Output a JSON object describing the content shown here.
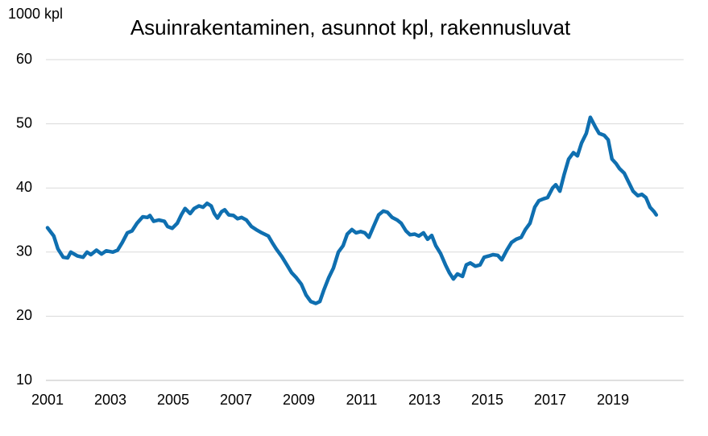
{
  "chart_data": {
    "type": "line",
    "title": "Asuinrakentaminen, asunnot kpl, rakennusluvat",
    "y_label": "1000 kpl",
    "color": "#0f6fb0",
    "grid": true,
    "xlim": [
      2001,
      2021.25
    ],
    "xticks": [
      2001,
      2003,
      2005,
      2007,
      2009,
      2011,
      2013,
      2015,
      2017,
      2019
    ],
    "ylim": [
      10,
      60
    ],
    "yticks": [
      10,
      20,
      30,
      40,
      50,
      60
    ],
    "x": [
      2001.0,
      2001.2,
      2001.33,
      2001.5,
      2001.64,
      2001.74,
      2001.95,
      2002.13,
      2002.26,
      2002.38,
      2002.56,
      2002.72,
      2002.87,
      2003.08,
      2003.23,
      2003.38,
      2003.54,
      2003.69,
      2003.85,
      2004.03,
      2004.18,
      2004.26,
      2004.38,
      2004.54,
      2004.72,
      2004.82,
      2004.97,
      2005.13,
      2005.26,
      2005.38,
      2005.54,
      2005.67,
      2005.82,
      2005.95,
      2006.08,
      2006.21,
      2006.31,
      2006.41,
      2006.54,
      2006.64,
      2006.77,
      2006.92,
      2007.05,
      2007.18,
      2007.33,
      2007.49,
      2007.64,
      2007.82,
      2008.03,
      2008.15,
      2008.28,
      2008.46,
      2008.62,
      2008.77,
      2008.92,
      2009.08,
      2009.23,
      2009.38,
      2009.54,
      2009.67,
      2009.79,
      2009.95,
      2010.1,
      2010.26,
      2010.41,
      2010.54,
      2010.69,
      2010.82,
      2010.97,
      2011.1,
      2011.23,
      2011.38,
      2011.54,
      2011.69,
      2011.82,
      2011.97,
      2012.13,
      2012.26,
      2012.41,
      2012.54,
      2012.69,
      2012.82,
      2012.97,
      2013.1,
      2013.23,
      2013.36,
      2013.51,
      2013.67,
      2013.79,
      2013.92,
      2014.05,
      2014.21,
      2014.33,
      2014.46,
      2014.62,
      2014.77,
      2014.9,
      2015.05,
      2015.18,
      2015.33,
      2015.46,
      2015.62,
      2015.77,
      2015.92,
      2016.08,
      2016.21,
      2016.36,
      2016.51,
      2016.64,
      2016.79,
      2016.92,
      2017.08,
      2017.18,
      2017.31,
      2017.44,
      2017.59,
      2017.74,
      2017.87,
      2018.0,
      2018.15,
      2018.28,
      2018.44,
      2018.56,
      2018.72,
      2018.85,
      2018.97,
      2019.1,
      2019.21,
      2019.36,
      2019.49,
      2019.64,
      2019.79,
      2019.92,
      2020.05,
      2020.18,
      2020.31,
      2020.38
    ],
    "values": [
      33.8,
      32.5,
      30.5,
      29.2,
      29.1,
      30,
      29.4,
      29.2,
      30,
      29.6,
      30.3,
      29.7,
      30.2,
      30,
      30.3,
      31.5,
      33,
      33.3,
      34.5,
      35.5,
      35.4,
      35.7,
      34.8,
      35,
      34.8,
      34,
      33.7,
      34.5,
      35.8,
      36.8,
      36,
      36.8,
      37.2,
      37,
      37.6,
      37.2,
      36,
      35.3,
      36.3,
      36.6,
      35.8,
      35.7,
      35.2,
      35.4,
      35,
      34,
      33.5,
      33,
      32.5,
      31.5,
      30.5,
      29.3,
      28,
      26.8,
      26,
      25,
      23.3,
      22.3,
      22,
      22.3,
      24,
      26,
      27.5,
      30,
      31,
      32.8,
      33.5,
      33,
      33.2,
      33,
      32.3,
      34,
      35.8,
      36.4,
      36.2,
      35.4,
      35,
      34.5,
      33.3,
      32.7,
      32.8,
      32.5,
      33,
      32,
      32.6,
      31,
      29.8,
      28,
      26.8,
      25.8,
      26.6,
      26.2,
      28,
      28.3,
      27.8,
      28,
      29.2,
      29.4,
      29.6,
      29.5,
      28.8,
      30.3,
      31.5,
      32,
      32.3,
      33.5,
      34.5,
      37,
      38,
      38.3,
      38.5,
      40,
      40.5,
      39.5,
      42,
      44.5,
      45.5,
      45,
      47,
      48.5,
      51,
      49.5,
      48.5,
      48.2,
      47.5,
      44.5,
      43.8,
      43,
      42.3,
      41,
      39.5,
      38.8,
      39,
      38.5,
      37,
      36.3,
      35.8
    ]
  }
}
